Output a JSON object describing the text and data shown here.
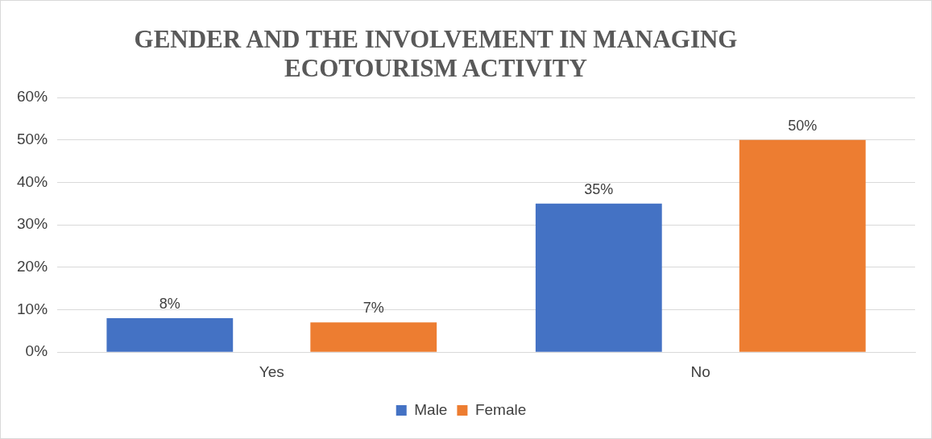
{
  "chart_data": {
    "type": "bar",
    "title": "GENDER AND THE INVOLVEMENT IN MANAGING ECOTOURISM ACTIVITY",
    "categories": [
      "Yes",
      "No"
    ],
    "series": [
      {
        "name": "Male",
        "color": "#4472c4",
        "values": [
          8,
          35
        ],
        "value_labels": [
          "8%",
          "35%"
        ]
      },
      {
        "name": "Female",
        "color": "#ed7d31",
        "values": [
          7,
          50
        ],
        "value_labels": [
          "7%",
          "50%"
        ]
      }
    ],
    "ylim": [
      0,
      60
    ],
    "yticks": [
      {
        "value": 0,
        "label": "0%"
      },
      {
        "value": 10,
        "label": "10%"
      },
      {
        "value": 20,
        "label": "20%"
      },
      {
        "value": 30,
        "label": "30%"
      },
      {
        "value": 40,
        "label": "40%"
      },
      {
        "value": 50,
        "label": "50%"
      },
      {
        "value": 60,
        "label": "60%"
      }
    ],
    "grid": "y",
    "legend": "bottom"
  }
}
